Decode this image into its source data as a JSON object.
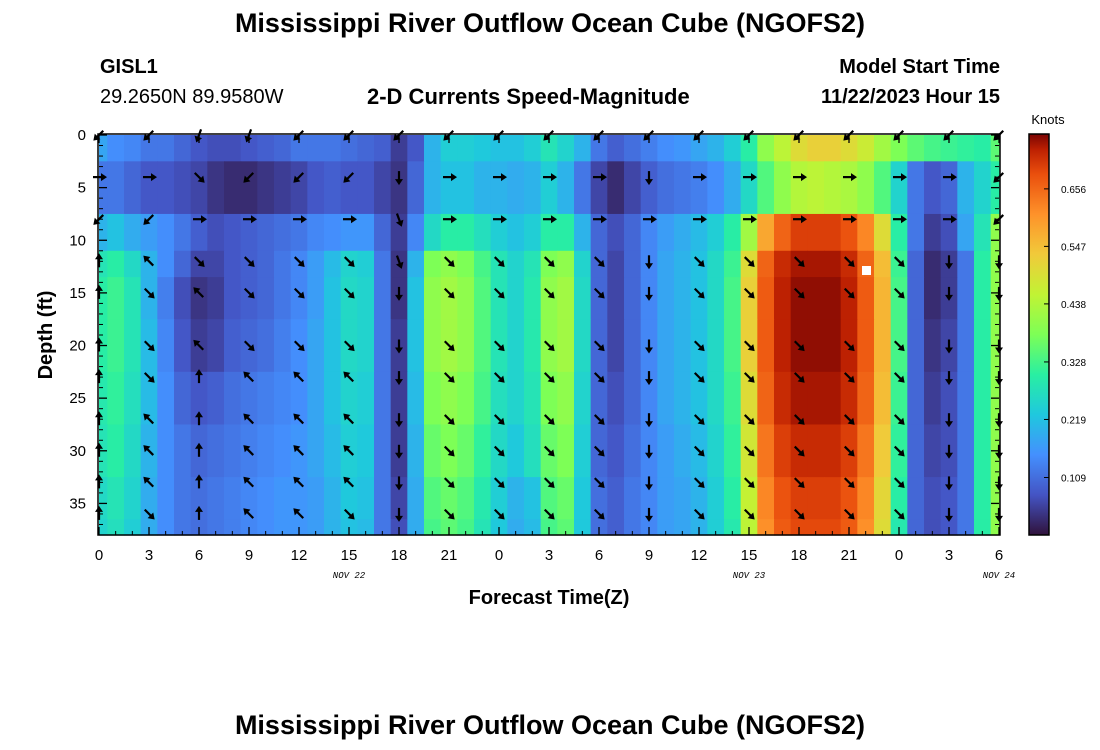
{
  "header": {
    "title": "Mississippi River Outflow Ocean Cube (NGOFS2)",
    "station_id": "GISL1",
    "station_coords": "29.2650N  89.9580W",
    "subtitle": "2-D Currents Speed-Magnitude",
    "model_start_label": "Model Start Time",
    "model_start_value": "11/22/2023 Hour 15"
  },
  "footer": {
    "title": "Mississippi River Outflow Ocean Cube (NGOFS2)"
  },
  "chart_data": {
    "type": "heatmap",
    "title": "2-D Currents Speed-Magnitude",
    "xlabel": "Forecast Time(Z)",
    "ylabel": "Depth (ft)",
    "x_tick_labels": [
      "0",
      "3",
      "6",
      "9",
      "12",
      "15",
      "18",
      "21",
      "0",
      "3",
      "6",
      "9",
      "12",
      "15",
      "18",
      "21",
      "0",
      "3",
      "6"
    ],
    "x_date_labels": [
      {
        "at_tick": 5,
        "text": "NOV 22"
      },
      {
        "at_tick": 13,
        "text": "NOV 23"
      },
      {
        "at_tick": 18,
        "text": "NOV 24"
      }
    ],
    "x_range_hours": [
      0,
      54
    ],
    "y_tick_labels": [
      "0",
      "5",
      "10",
      "15",
      "20",
      "25",
      "30",
      "35"
    ],
    "y_range_ft": [
      0,
      38
    ],
    "y_inverted": true,
    "colorbar": {
      "label": "Knots",
      "range": [
        0,
        0.76
      ],
      "tick_labels": [
        "0.109",
        "0.219",
        "0.328",
        "0.438",
        "0.547",
        "0.656"
      ],
      "tick_values": [
        0.109,
        0.219,
        0.328,
        0.438,
        0.547,
        0.656
      ],
      "colormap": "turbo"
    },
    "speed_time_hours": [
      0,
      1,
      2,
      3,
      4,
      5,
      6,
      7,
      8,
      9,
      10,
      11,
      12,
      13,
      14,
      15,
      16,
      17,
      18,
      19,
      20,
      21,
      22,
      23,
      24,
      25,
      26,
      27,
      28,
      29,
      30,
      31,
      32,
      33,
      34,
      35,
      36,
      37,
      38,
      39,
      40,
      41,
      42,
      43,
      44,
      45,
      46,
      47,
      48,
      49,
      50,
      51,
      52,
      53,
      54
    ],
    "speed_depth_ft": [
      0,
      5,
      10,
      12,
      15,
      20,
      25,
      30,
      35,
      38
    ],
    "speed_knots": [
      [
        0.18,
        0.15,
        0.14,
        0.12,
        0.12,
        0.1,
        0.08,
        0.07,
        0.07,
        0.08,
        0.09,
        0.1,
        0.12,
        0.12,
        0.12,
        0.11,
        0.1,
        0.09,
        0.05,
        0.08,
        0.2,
        0.24,
        0.24,
        0.23,
        0.22,
        0.22,
        0.24,
        0.28,
        0.25,
        0.2,
        0.12,
        0.09,
        0.11,
        0.13,
        0.15,
        0.16,
        0.18,
        0.2,
        0.24,
        0.3,
        0.4,
        0.45,
        0.5,
        0.52,
        0.52,
        0.5,
        0.47,
        0.42,
        0.38,
        0.35,
        0.33,
        0.32,
        0.31,
        0.3,
        0.35
      ],
      [
        0.12,
        0.12,
        0.1,
        0.08,
        0.08,
        0.07,
        0.06,
        0.04,
        0.03,
        0.03,
        0.04,
        0.05,
        0.06,
        0.08,
        0.09,
        0.08,
        0.08,
        0.06,
        0.04,
        0.1,
        0.2,
        0.22,
        0.22,
        0.2,
        0.2,
        0.19,
        0.2,
        0.24,
        0.2,
        0.12,
        0.06,
        0.03,
        0.06,
        0.09,
        0.11,
        0.12,
        0.13,
        0.15,
        0.19,
        0.26,
        0.34,
        0.4,
        0.44,
        0.45,
        0.44,
        0.43,
        0.4,
        0.34,
        0.25,
        0.12,
        0.08,
        0.1,
        0.2,
        0.25,
        0.3
      ],
      [
        0.2,
        0.22,
        0.19,
        0.17,
        0.15,
        0.12,
        0.09,
        0.07,
        0.08,
        0.09,
        0.1,
        0.11,
        0.12,
        0.14,
        0.15,
        0.16,
        0.16,
        0.1,
        0.05,
        0.14,
        0.26,
        0.3,
        0.3,
        0.27,
        0.24,
        0.22,
        0.24,
        0.3,
        0.3,
        0.2,
        0.1,
        0.07,
        0.1,
        0.14,
        0.17,
        0.19,
        0.21,
        0.24,
        0.3,
        0.42,
        0.58,
        0.66,
        0.7,
        0.7,
        0.7,
        0.68,
        0.62,
        0.5,
        0.3,
        0.12,
        0.05,
        0.07,
        0.18,
        0.28,
        0.4
      ],
      [
        0.28,
        0.3,
        0.26,
        0.2,
        0.15,
        0.1,
        0.06,
        0.06,
        0.08,
        0.09,
        0.1,
        0.12,
        0.14,
        0.17,
        0.21,
        0.25,
        0.24,
        0.12,
        0.04,
        0.2,
        0.38,
        0.4,
        0.38,
        0.33,
        0.28,
        0.25,
        0.28,
        0.38,
        0.4,
        0.25,
        0.1,
        0.06,
        0.1,
        0.14,
        0.18,
        0.2,
        0.22,
        0.26,
        0.32,
        0.5,
        0.66,
        0.72,
        0.74,
        0.74,
        0.74,
        0.72,
        0.66,
        0.55,
        0.32,
        0.1,
        0.03,
        0.05,
        0.12,
        0.3,
        0.4
      ],
      [
        0.3,
        0.32,
        0.28,
        0.2,
        0.13,
        0.07,
        0.04,
        0.05,
        0.08,
        0.09,
        0.1,
        0.12,
        0.14,
        0.17,
        0.22,
        0.26,
        0.25,
        0.12,
        0.04,
        0.22,
        0.4,
        0.42,
        0.4,
        0.34,
        0.28,
        0.25,
        0.29,
        0.4,
        0.42,
        0.26,
        0.1,
        0.06,
        0.1,
        0.14,
        0.18,
        0.2,
        0.22,
        0.26,
        0.33,
        0.52,
        0.67,
        0.73,
        0.75,
        0.75,
        0.75,
        0.73,
        0.67,
        0.56,
        0.33,
        0.1,
        0.03,
        0.05,
        0.12,
        0.3,
        0.4
      ],
      [
        0.3,
        0.32,
        0.28,
        0.21,
        0.14,
        0.08,
        0.05,
        0.06,
        0.09,
        0.1,
        0.11,
        0.13,
        0.15,
        0.18,
        0.22,
        0.26,
        0.25,
        0.12,
        0.05,
        0.22,
        0.4,
        0.42,
        0.4,
        0.34,
        0.28,
        0.25,
        0.29,
        0.4,
        0.42,
        0.26,
        0.1,
        0.06,
        0.1,
        0.14,
        0.18,
        0.2,
        0.22,
        0.26,
        0.33,
        0.52,
        0.67,
        0.73,
        0.75,
        0.75,
        0.75,
        0.73,
        0.67,
        0.56,
        0.33,
        0.1,
        0.04,
        0.06,
        0.12,
        0.3,
        0.4
      ],
      [
        0.29,
        0.31,
        0.27,
        0.21,
        0.15,
        0.1,
        0.08,
        0.09,
        0.11,
        0.12,
        0.13,
        0.14,
        0.15,
        0.18,
        0.22,
        0.25,
        0.24,
        0.12,
        0.05,
        0.21,
        0.38,
        0.4,
        0.38,
        0.33,
        0.27,
        0.25,
        0.28,
        0.38,
        0.4,
        0.25,
        0.1,
        0.07,
        0.1,
        0.14,
        0.18,
        0.2,
        0.22,
        0.26,
        0.32,
        0.5,
        0.66,
        0.72,
        0.74,
        0.74,
        0.74,
        0.72,
        0.66,
        0.55,
        0.32,
        0.1,
        0.05,
        0.07,
        0.12,
        0.3,
        0.4
      ],
      [
        0.28,
        0.3,
        0.26,
        0.2,
        0.15,
        0.12,
        0.1,
        0.11,
        0.12,
        0.13,
        0.14,
        0.15,
        0.16,
        0.18,
        0.21,
        0.24,
        0.23,
        0.12,
        0.05,
        0.2,
        0.36,
        0.38,
        0.36,
        0.31,
        0.26,
        0.23,
        0.27,
        0.36,
        0.38,
        0.24,
        0.1,
        0.08,
        0.11,
        0.14,
        0.17,
        0.19,
        0.21,
        0.25,
        0.31,
        0.48,
        0.64,
        0.7,
        0.72,
        0.72,
        0.72,
        0.7,
        0.64,
        0.53,
        0.31,
        0.1,
        0.06,
        0.07,
        0.12,
        0.3,
        0.4
      ],
      [
        0.26,
        0.28,
        0.25,
        0.19,
        0.15,
        0.12,
        0.11,
        0.12,
        0.13,
        0.14,
        0.15,
        0.16,
        0.16,
        0.17,
        0.2,
        0.23,
        0.22,
        0.12,
        0.06,
        0.19,
        0.34,
        0.36,
        0.34,
        0.29,
        0.24,
        0.2,
        0.22,
        0.34,
        0.36,
        0.23,
        0.11,
        0.09,
        0.12,
        0.14,
        0.17,
        0.18,
        0.2,
        0.24,
        0.3,
        0.46,
        0.62,
        0.68,
        0.7,
        0.7,
        0.7,
        0.68,
        0.62,
        0.51,
        0.3,
        0.1,
        0.07,
        0.08,
        0.12,
        0.3,
        0.4
      ],
      [
        0.25,
        0.27,
        0.24,
        0.19,
        0.15,
        0.12,
        0.11,
        0.12,
        0.13,
        0.14,
        0.15,
        0.16,
        0.16,
        0.17,
        0.2,
        0.22,
        0.21,
        0.12,
        0.07,
        0.19,
        0.33,
        0.35,
        0.33,
        0.28,
        0.23,
        0.19,
        0.21,
        0.33,
        0.35,
        0.23,
        0.11,
        0.09,
        0.12,
        0.14,
        0.17,
        0.18,
        0.2,
        0.24,
        0.29,
        0.45,
        0.61,
        0.67,
        0.69,
        0.69,
        0.69,
        0.67,
        0.61,
        0.5,
        0.29,
        0.1,
        0.07,
        0.08,
        0.12,
        0.3,
        0.4
      ]
    ],
    "arrow_time_hours": [
      0,
      3,
      6,
      9,
      12,
      15,
      18,
      21,
      24,
      27,
      30,
      33,
      36,
      39,
      42,
      45,
      48,
      51,
      54
    ],
    "arrow_depth_ft": [
      0,
      4,
      8,
      12,
      15,
      20,
      23,
      27,
      30,
      33,
      36
    ],
    "arrow_direction_deg": [
      [
        225,
        225,
        200,
        200,
        225,
        225,
        225,
        225,
        225,
        225,
        225,
        225,
        225,
        225,
        225,
        225,
        225,
        225,
        225
      ],
      [
        90,
        90,
        135,
        225,
        225,
        225,
        180,
        90,
        90,
        90,
        90,
        180,
        90,
        90,
        90,
        90,
        90,
        90,
        225
      ],
      [
        225,
        225,
        90,
        90,
        90,
        90,
        160,
        90,
        90,
        90,
        90,
        90,
        90,
        90,
        90,
        90,
        90,
        90,
        225
      ],
      [
        0,
        315,
        135,
        135,
        135,
        135,
        160,
        135,
        135,
        135,
        135,
        180,
        135,
        135,
        135,
        135,
        135,
        180,
        180
      ],
      [
        0,
        135,
        315,
        135,
        135,
        135,
        180,
        135,
        135,
        135,
        135,
        180,
        135,
        135,
        135,
        135,
        135,
        180,
        180
      ],
      [
        0,
        135,
        315,
        135,
        135,
        135,
        180,
        135,
        135,
        135,
        135,
        180,
        135,
        135,
        135,
        135,
        135,
        180,
        180
      ],
      [
        0,
        135,
        0,
        315,
        315,
        315,
        180,
        135,
        135,
        135,
        135,
        180,
        135,
        135,
        135,
        135,
        135,
        180,
        180
      ],
      [
        0,
        315,
        0,
        315,
        315,
        315,
        180,
        135,
        135,
        135,
        135,
        180,
        135,
        135,
        135,
        135,
        135,
        180,
        180
      ],
      [
        0,
        315,
        0,
        315,
        315,
        315,
        180,
        135,
        135,
        135,
        135,
        180,
        135,
        135,
        135,
        135,
        135,
        180,
        180
      ],
      [
        0,
        315,
        0,
        315,
        315,
        315,
        180,
        135,
        135,
        135,
        135,
        180,
        135,
        135,
        135,
        135,
        135,
        180,
        180
      ],
      [
        0,
        135,
        0,
        315,
        315,
        135,
        180,
        135,
        135,
        135,
        135,
        180,
        135,
        135,
        135,
        135,
        135,
        180,
        180
      ]
    ]
  }
}
